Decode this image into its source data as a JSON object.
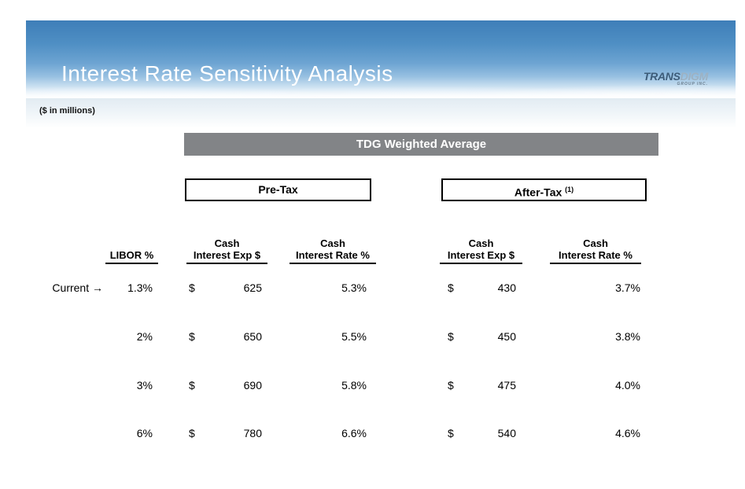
{
  "colors": {
    "sky_top": "#3e7eb8",
    "sky_light": "#cfe3f2",
    "banner_gray": "#828487",
    "text": "#000000",
    "title_text": "#ffffff",
    "logo_dark_blue": "#3d5c79",
    "logo_light_blue": "#9db2c3"
  },
  "header": {
    "title": "Interest Rate Sensitivity Analysis",
    "logo": {
      "trans": "TRANS",
      "digm": "DIGM",
      "sub": "GROUP INC."
    }
  },
  "units_note": "($ in millions)",
  "banner": {
    "label": "TDG Weighted Average"
  },
  "sections": {
    "pretax": "Pre-Tax",
    "aftertax": "After-Tax",
    "aftertax_sup": "(1)"
  },
  "columns": {
    "libor": "LIBOR %",
    "cash": "Cash",
    "interest_exp": "Interest Exp $",
    "interest_rate": "Interest Rate %"
  },
  "table": {
    "currency": "$",
    "rows": [
      {
        "label": "Current →",
        "libor": "1.3%",
        "pre_exp": "625",
        "pre_rate": "5.3%",
        "post_exp": "430",
        "post_rate": "3.7%"
      },
      {
        "label": "",
        "libor": "2%",
        "pre_exp": "650",
        "pre_rate": "5.5%",
        "post_exp": "450",
        "post_rate": "3.8%"
      },
      {
        "label": "",
        "libor": "3%",
        "pre_exp": "690",
        "pre_rate": "5.8%",
        "post_exp": "475",
        "post_rate": "4.0%"
      },
      {
        "label": "",
        "libor": "6%",
        "pre_exp": "780",
        "pre_rate": "6.6%",
        "post_exp": "540",
        "post_rate": "4.6%"
      }
    ]
  }
}
